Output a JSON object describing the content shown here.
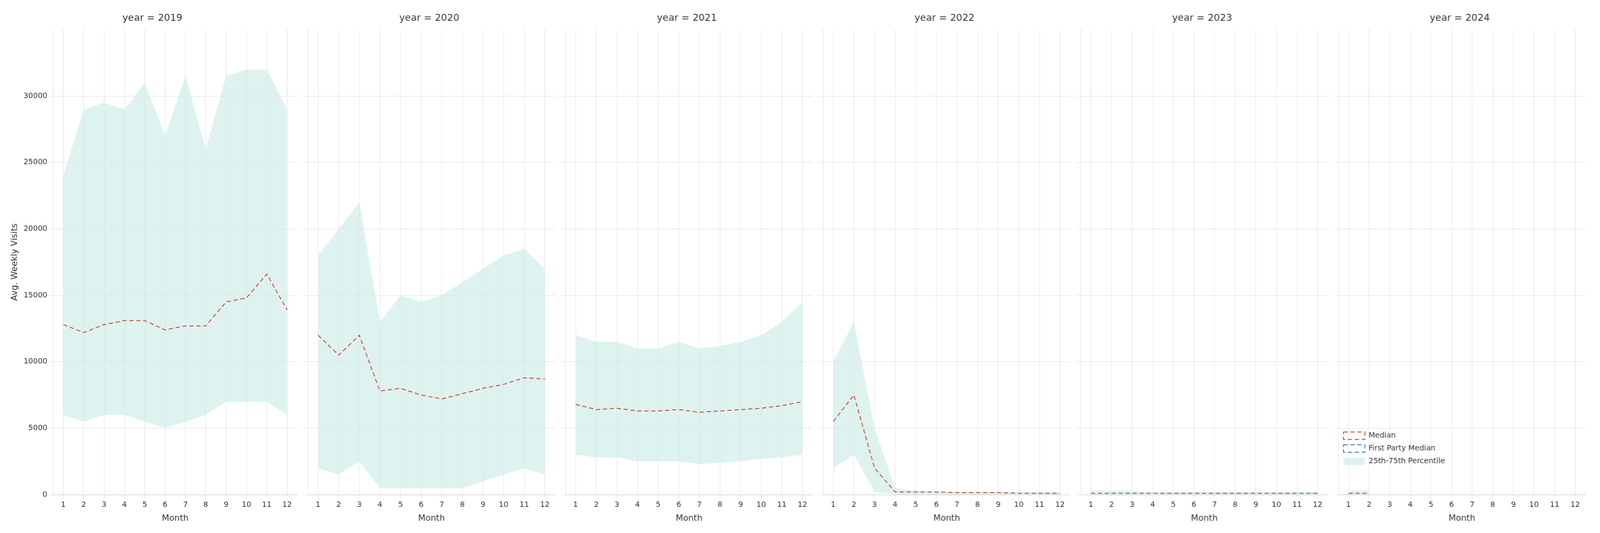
{
  "chart_data": [
    {
      "type": "line",
      "title": "year = 2019",
      "xlabel": "Month",
      "ylabel": "Avg. Weekly Visits",
      "x": [
        1,
        2,
        3,
        4,
        5,
        6,
        7,
        8,
        9,
        10,
        11,
        12
      ],
      "xlim": [
        0.5,
        12.5
      ],
      "xticks": [
        1,
        2,
        3,
        4,
        5,
        6,
        7,
        8,
        9,
        10,
        11,
        12
      ],
      "ylim": [
        0,
        35000
      ],
      "yticks": [
        0,
        5000,
        10000,
        15000,
        20000,
        25000,
        30000
      ],
      "grid": true,
      "series": [
        {
          "name": "Median",
          "color": "#c0392b",
          "line_style": "dashed",
          "values": [
            12800,
            12200,
            12800,
            13100,
            13100,
            12400,
            12700,
            12700,
            14500,
            14800,
            16600,
            13900
          ]
        },
        {
          "name": "25th-75th Percentile",
          "type": "area",
          "color": "#c8ebe5",
          "lower": [
            6000,
            5500,
            6000,
            6000,
            5500,
            5000,
            5500,
            6000,
            7000,
            7000,
            7000,
            6000
          ],
          "upper": [
            24000,
            29000,
            29500,
            29000,
            31000,
            27000,
            31500,
            26000,
            31500,
            32000,
            32000,
            29000
          ]
        }
      ]
    },
    {
      "type": "line",
      "title": "year = 2020",
      "xlabel": "Month",
      "x": [
        1,
        2,
        3,
        4,
        5,
        6,
        7,
        8,
        9,
        10,
        11,
        12
      ],
      "xlim": [
        0.5,
        12.5
      ],
      "xticks": [
        1,
        2,
        3,
        4,
        5,
        6,
        7,
        8,
        9,
        10,
        11,
        12
      ],
      "ylim": [
        0,
        35000
      ],
      "yticks": [
        0,
        5000,
        10000,
        15000,
        20000,
        25000,
        30000
      ],
      "grid": true,
      "tick_labels": "x",
      "series": [
        {
          "name": "Median",
          "color": "#c0392b",
          "line_style": "dashed",
          "values": [
            12000,
            10500,
            12000,
            7800,
            8000,
            7500,
            7200,
            7600,
            8000,
            8300,
            8800,
            8700
          ]
        },
        {
          "name": "25th-75th Percentile",
          "type": "area",
          "color": "#c8ebe5",
          "lower": [
            2000,
            1500,
            2500,
            500,
            500,
            500,
            500,
            500,
            1000,
            1500,
            2000,
            1500
          ],
          "upper": [
            18000,
            20000,
            22000,
            13000,
            15000,
            14500,
            15000,
            16000,
            17000,
            18000,
            18500,
            17000
          ]
        }
      ]
    },
    {
      "type": "line",
      "title": "year = 2021",
      "xlabel": "Month",
      "x": [
        1,
        2,
        3,
        4,
        5,
        6,
        7,
        8,
        9,
        10,
        11,
        12
      ],
      "xlim": [
        0.5,
        12.5
      ],
      "xticks": [
        1,
        2,
        3,
        4,
        5,
        6,
        7,
        8,
        9,
        10,
        11,
        12
      ],
      "ylim": [
        0,
        35000
      ],
      "yticks": [
        0,
        5000,
        10000,
        15000,
        20000,
        25000,
        30000
      ],
      "grid": true,
      "tick_labels": "x",
      "series": [
        {
          "name": "Median",
          "color": "#c0392b",
          "line_style": "dashed",
          "values": [
            6800,
            6400,
            6500,
            6300,
            6300,
            6400,
            6200,
            6300,
            6400,
            6500,
            6700,
            7000
          ]
        },
        {
          "name": "25th-75th Percentile",
          "type": "area",
          "color": "#c8ebe5",
          "lower": [
            3000,
            2800,
            2800,
            2500,
            2500,
            2500,
            2300,
            2400,
            2500,
            2700,
            2800,
            3000
          ],
          "upper": [
            12000,
            11500,
            11500,
            11000,
            11000,
            11500,
            11000,
            11200,
            11500,
            12000,
            13000,
            14500
          ]
        }
      ]
    },
    {
      "type": "line",
      "title": "year = 2022",
      "xlabel": "Month",
      "x": [
        1,
        2,
        3,
        4,
        5,
        6,
        7,
        8,
        9,
        10,
        11,
        12
      ],
      "xlim": [
        0.5,
        12.5
      ],
      "xticks": [
        1,
        2,
        3,
        4,
        5,
        6,
        7,
        8,
        9,
        10,
        11,
        12
      ],
      "ylim": [
        0,
        35000
      ],
      "yticks": [
        0,
        5000,
        10000,
        15000,
        20000,
        25000,
        30000
      ],
      "grid": true,
      "tick_labels": "x",
      "series": [
        {
          "name": "Median",
          "color": "#c0392b",
          "line_style": "dashed",
          "values": [
            5500,
            7500,
            2000,
            200,
            200,
            200,
            150,
            150,
            150,
            100,
            100,
            100
          ]
        },
        {
          "name": "25th-75th Percentile",
          "type": "area",
          "color": "#c8ebe5",
          "lower": [
            2000,
            3000,
            200,
            0,
            0,
            0,
            0,
            0,
            0,
            0,
            0,
            0
          ],
          "upper": [
            10000,
            13000,
            5000,
            500,
            300,
            200,
            200,
            200,
            200,
            200,
            200,
            200
          ]
        }
      ]
    },
    {
      "type": "line",
      "title": "year = 2023",
      "xlabel": "Month",
      "x": [
        1,
        2,
        3,
        4,
        5,
        6,
        7,
        8,
        9,
        10,
        11,
        12
      ],
      "xlim": [
        0.5,
        12.5
      ],
      "xticks": [
        1,
        2,
        3,
        4,
        5,
        6,
        7,
        8,
        9,
        10,
        11,
        12
      ],
      "ylim": [
        0,
        35000
      ],
      "yticks": [
        0,
        5000,
        10000,
        15000,
        20000,
        25000,
        30000
      ],
      "grid": true,
      "tick_labels": "x",
      "series": [
        {
          "name": "Median",
          "color": "#c0392b",
          "line_style": "dashed",
          "values": [
            100,
            100,
            100,
            100,
            100,
            100,
            100,
            100,
            100,
            100,
            100,
            100
          ]
        },
        {
          "name": "25th-75th Percentile",
          "type": "area",
          "color": "#c8ebe5",
          "lower": [
            0,
            0,
            0,
            0,
            0,
            0,
            0,
            0,
            0,
            0,
            0,
            0
          ],
          "upper": [
            300,
            300,
            300,
            200,
            200,
            200,
            200,
            200,
            200,
            200,
            200,
            200
          ]
        }
      ]
    },
    {
      "type": "line",
      "title": "year = 2024",
      "xlabel": "Month",
      "x": [
        1,
        2,
        3,
        4,
        5,
        6,
        7,
        8,
        9,
        10,
        11,
        12
      ],
      "xlim": [
        0.5,
        12.5
      ],
      "xticks": [
        1,
        2,
        3,
        4,
        5,
        6,
        7,
        8,
        9,
        10,
        11,
        12
      ],
      "ylim": [
        0,
        35000
      ],
      "yticks": [
        0,
        5000,
        10000,
        15000,
        20000,
        25000,
        30000
      ],
      "grid": true,
      "tick_labels": "x",
      "legend": "upper right",
      "series": [
        {
          "name": "Median",
          "color": "#c0392b",
          "line_style": "dashed",
          "values": [
            100,
            100,
            null,
            null,
            null,
            null,
            null,
            null,
            null,
            null,
            null,
            null
          ]
        },
        {
          "name": "First Party Median",
          "color": "#2471a3",
          "line_style": "dashed",
          "values": [
            null,
            null,
            null,
            null,
            null,
            null,
            null,
            null,
            null,
            null,
            null,
            null
          ]
        },
        {
          "name": "25th-75th Percentile",
          "type": "area",
          "color": "#c8ebe5",
          "lower": [
            0,
            0,
            null,
            null,
            null,
            null,
            null,
            null,
            null,
            null,
            null,
            null
          ],
          "upper": [
            300,
            300,
            null,
            null,
            null,
            null,
            null,
            null,
            null,
            null,
            null,
            null
          ]
        }
      ]
    }
  ]
}
